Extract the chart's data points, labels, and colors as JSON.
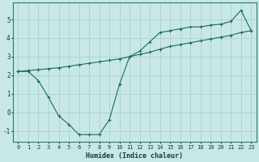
{
  "xlabel": "Humidex (Indice chaleur)",
  "background_color": "#c8e8e8",
  "grid_color": "#b0d0d0",
  "line_color": "#1a6b5a",
  "xlim": [
    -0.5,
    23.5
  ],
  "ylim": [
    -1.6,
    5.9
  ],
  "xticks": [
    0,
    1,
    2,
    3,
    4,
    5,
    6,
    7,
    8,
    9,
    10,
    11,
    12,
    13,
    14,
    15,
    16,
    17,
    18,
    19,
    20,
    21,
    22,
    23
  ],
  "yticks": [
    -1,
    0,
    1,
    2,
    3,
    4,
    5
  ],
  "line1_x": [
    0,
    1,
    2,
    3,
    4,
    5,
    6,
    7,
    8,
    9,
    10,
    11,
    12,
    13,
    14,
    15,
    16,
    17,
    18,
    19,
    20,
    21,
    22,
    23
  ],
  "line1_y": [
    2.2,
    2.2,
    1.7,
    0.8,
    -0.2,
    -0.65,
    -1.2,
    -1.2,
    -1.2,
    -0.4,
    1.5,
    3.0,
    3.3,
    3.8,
    4.3,
    4.4,
    4.5,
    4.6,
    4.6,
    4.7,
    4.75,
    4.9,
    5.5,
    4.4
  ],
  "line2_x": [
    0,
    1,
    2,
    3,
    4,
    5,
    6,
    7,
    8,
    9,
    10,
    11,
    12,
    13,
    14,
    15,
    16,
    17,
    18,
    19,
    20,
    21,
    22,
    23
  ],
  "line2_y": [
    2.2,
    2.25,
    2.3,
    2.35,
    2.4,
    2.48,
    2.56,
    2.64,
    2.72,
    2.8,
    2.88,
    3.0,
    3.12,
    3.24,
    3.4,
    3.55,
    3.65,
    3.75,
    3.85,
    3.95,
    4.05,
    4.15,
    4.3,
    4.4
  ]
}
